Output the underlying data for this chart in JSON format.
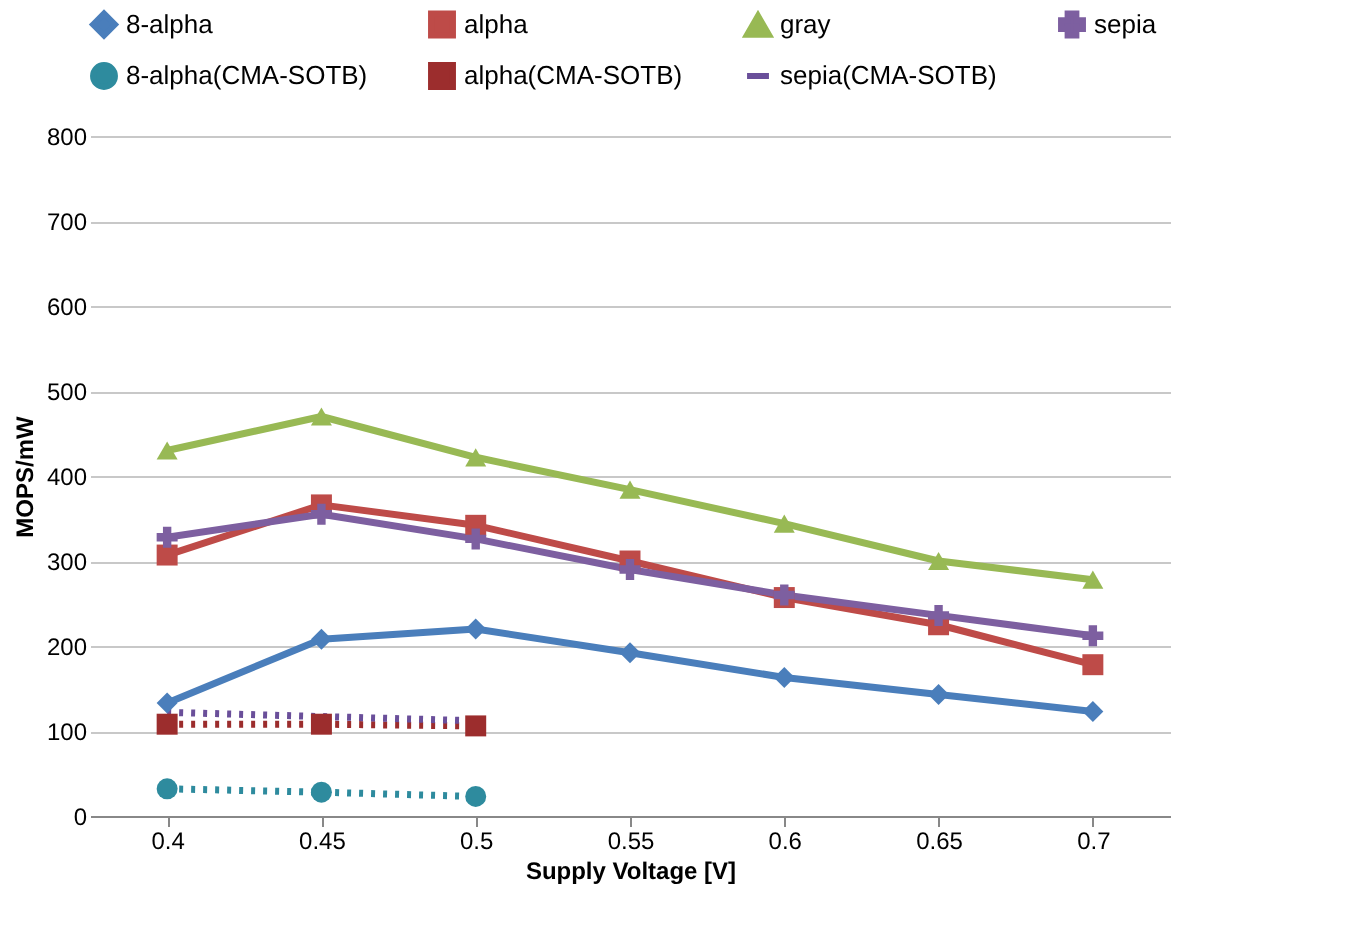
{
  "chart_data": {
    "type": "line",
    "xlabel": "Supply Voltage [V]",
    "ylabel": "MOPS/mW",
    "categories": [
      "0.4",
      "0.45",
      "0.5",
      "0.55",
      "0.6",
      "0.65",
      "0.7"
    ],
    "ylim": [
      0,
      800
    ],
    "yticks": [
      0,
      100,
      200,
      300,
      400,
      500,
      600,
      700,
      800
    ],
    "grid": "y",
    "legend": "top",
    "series": [
      {
        "name": "8-alpha",
        "color": "#4a7ebb",
        "marker": "diamond",
        "line_style": "solid",
        "values": [
          133,
          208,
          220,
          192,
          163,
          143,
          123
        ]
      },
      {
        "name": "alpha",
        "color": "#be4b48",
        "marker": "square",
        "line_style": "solid",
        "values": [
          307,
          366,
          342,
          300,
          257,
          225,
          178
        ]
      },
      {
        "name": "gray",
        "color": "#98b954",
        "marker": "triangle",
        "line_style": "solid",
        "values": [
          430,
          470,
          422,
          384,
          344,
          300,
          278
        ]
      },
      {
        "name": "sepia",
        "color": "#7d5fa0",
        "marker": "cross",
        "line_style": "solid",
        "values": [
          328,
          355,
          326,
          290,
          260,
          236,
          212
        ]
      },
      {
        "name": "8-alpha(CMA-SOTB)",
        "color": "#2e8b9e",
        "marker": "circle",
        "line_style": "dotted",
        "values": [
          32,
          28,
          23,
          null,
          null,
          null,
          null
        ]
      },
      {
        "name": "alpha(CMA-SOTB)",
        "color": "#9c2d2d",
        "marker": "square",
        "line_style": "dotted",
        "values": [
          108,
          108,
          106,
          null,
          null,
          null,
          null
        ]
      },
      {
        "name": "sepia(CMA-SOTB)",
        "color": "#6a4f9a",
        "marker": "none",
        "line_style": "dotted",
        "values": [
          122,
          117,
          112,
          null,
          null,
          null,
          null
        ]
      }
    ]
  }
}
